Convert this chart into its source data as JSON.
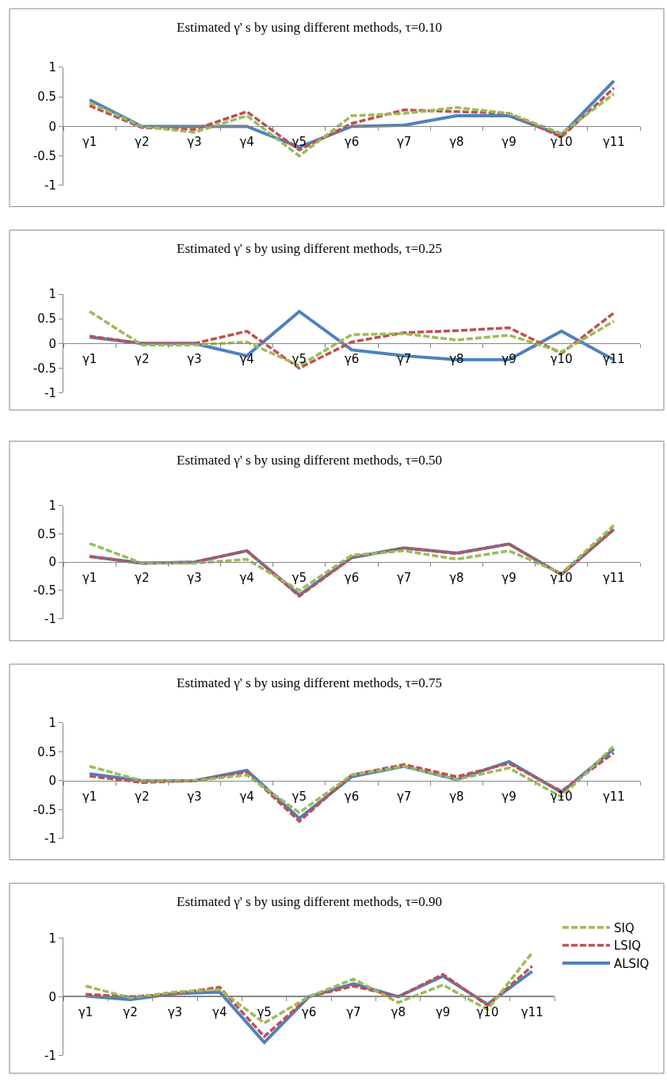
{
  "chart_data": [
    {
      "type": "line",
      "title": "Estimated γ' s by using different methods, τ=0.10",
      "categories": [
        "γ1",
        "γ2",
        "γ3",
        "γ4",
        "γ5",
        "γ6",
        "γ7",
        "γ8",
        "γ9",
        "γ10",
        "γ11"
      ],
      "ylim": [
        -1,
        1
      ],
      "yticks": [
        -1,
        -0.5,
        0,
        0.5,
        1
      ],
      "grid": false,
      "series": [
        {
          "color": "#9bbb59",
          "line_style": "dashed",
          "values": [
            0.4,
            0,
            -0.1,
            0.18,
            -0.5,
            0.18,
            0.22,
            0.32,
            0.22,
            -0.12,
            0.55
          ]
        },
        {
          "color": "#c0504d",
          "line_style": "dashed",
          "values": [
            0.35,
            -0.02,
            -0.05,
            0.25,
            -0.4,
            0.05,
            0.28,
            0.25,
            0.22,
            -0.18,
            0.65
          ]
        },
        {
          "color": "#4f81bd",
          "line_style": "solid",
          "values": [
            0.45,
            0,
            0,
            0,
            -0.35,
            0,
            0.02,
            0.18,
            0.18,
            -0.15,
            0.77
          ]
        }
      ]
    },
    {
      "type": "line",
      "title": "Estimated γ' s by using different methods, τ=0.25",
      "categories": [
        "γ1",
        "γ2",
        "γ3",
        "γ4",
        "γ5",
        "γ6",
        "γ7",
        "γ8",
        "γ9",
        "γ10",
        "γ11"
      ],
      "ylim": [
        -1,
        1
      ],
      "yticks": [
        -1,
        -0.5,
        0,
        0.5,
        1
      ],
      "grid": false,
      "series": [
        {
          "color": "#9bbb59",
          "line_style": "dashed",
          "values": [
            0.65,
            -0.03,
            -0.03,
            0.03,
            -0.45,
            0.18,
            0.2,
            0.07,
            0.17,
            -0.17,
            0.45
          ]
        },
        {
          "color": "#c0504d",
          "line_style": "dashed",
          "values": [
            0.15,
            0,
            0,
            0.25,
            -0.5,
            0.03,
            0.22,
            0.26,
            0.32,
            -0.2,
            0.62
          ]
        },
        {
          "color": "#4f81bd",
          "line_style": "solid",
          "values": [
            0.13,
            0,
            0,
            -0.25,
            0.65,
            -0.13,
            -0.25,
            -0.33,
            -0.33,
            0.25,
            -0.33
          ]
        }
      ]
    },
    {
      "type": "line",
      "title": "Estimated γ' s by using different methods, τ=0.50",
      "categories": [
        "γ1",
        "γ2",
        "γ3",
        "γ4",
        "γ5",
        "γ6",
        "γ7",
        "γ8",
        "γ9",
        "γ10",
        "γ11"
      ],
      "ylim": [
        -1,
        1
      ],
      "yticks": [
        -1,
        -0.5,
        0,
        0.5,
        1
      ],
      "grid": false,
      "series": [
        {
          "color": "#9bbb59",
          "line_style": "dashed",
          "values": [
            0.33,
            -0.02,
            -0.02,
            0.05,
            -0.5,
            0.12,
            0.2,
            0.05,
            0.2,
            -0.2,
            0.65
          ]
        },
        {
          "color": "#c0504d",
          "line_style": "dashed",
          "values": [
            0.1,
            -0.02,
            0,
            0.2,
            -0.6,
            0.08,
            0.25,
            0.15,
            0.32,
            -0.22,
            0.58
          ]
        },
        {
          "color": "#4f81bd",
          "line_style": "solid",
          "values": [
            0.1,
            -0.02,
            0,
            0.2,
            -0.58,
            0.08,
            0.25,
            0.16,
            0.32,
            -0.22,
            0.58
          ]
        }
      ]
    },
    {
      "type": "line",
      "title": "Estimated γ' s by using different methods, τ=0.75",
      "categories": [
        "γ1",
        "γ2",
        "γ3",
        "γ4",
        "γ5",
        "γ6",
        "γ7",
        "γ8",
        "γ9",
        "γ10",
        "γ11"
      ],
      "ylim": [
        -1,
        1
      ],
      "yticks": [
        -1,
        -0.5,
        0,
        0.5,
        1
      ],
      "grid": false,
      "series": [
        {
          "color": "#9bbb59",
          "line_style": "dashed",
          "values": [
            0.25,
            0,
            0,
            0.1,
            -0.55,
            0.1,
            0.25,
            0.02,
            0.22,
            -0.28,
            0.6
          ]
        },
        {
          "color": "#c0504d",
          "line_style": "dashed",
          "values": [
            0.08,
            -0.03,
            0,
            0.15,
            -0.7,
            0.1,
            0.28,
            0.07,
            0.3,
            -0.18,
            0.48
          ]
        },
        {
          "color": "#4f81bd",
          "line_style": "solid",
          "values": [
            0.12,
            0,
            0,
            0.18,
            -0.65,
            0.07,
            0.25,
            0.02,
            0.33,
            -0.2,
            0.55
          ]
        }
      ]
    },
    {
      "type": "line",
      "title": "Estimated γ' s by using different methods, τ=0.90",
      "categories": [
        "γ1",
        "γ2",
        "γ3",
        "γ4",
        "γ5",
        "γ6",
        "γ7",
        "γ8",
        "γ9",
        "γ10",
        "γ11"
      ],
      "ylim": [
        -1,
        1
      ],
      "yticks": [
        -1,
        0,
        1
      ],
      "grid": "y",
      "legend": "right",
      "series": [
        {
          "name": "SIQ",
          "color": "#9bbb59",
          "line_style": "dashed",
          "values": [
            0.18,
            -0.02,
            0.08,
            0.12,
            -0.45,
            0,
            0.3,
            -0.1,
            0.2,
            -0.22,
            0.75
          ]
        },
        {
          "name": "LSIQ",
          "color": "#c0504d",
          "line_style": "dashed",
          "values": [
            0.04,
            0,
            0.05,
            0.16,
            -0.68,
            0,
            0.18,
            0,
            0.38,
            -0.15,
            0.52
          ]
        },
        {
          "name": "ALSIQ",
          "color": "#4f81bd",
          "line_style": "solid",
          "values": [
            0.01,
            -0.05,
            0.05,
            0.08,
            -0.78,
            0,
            0.22,
            0,
            0.35,
            -0.13,
            0.43
          ]
        }
      ]
    }
  ]
}
